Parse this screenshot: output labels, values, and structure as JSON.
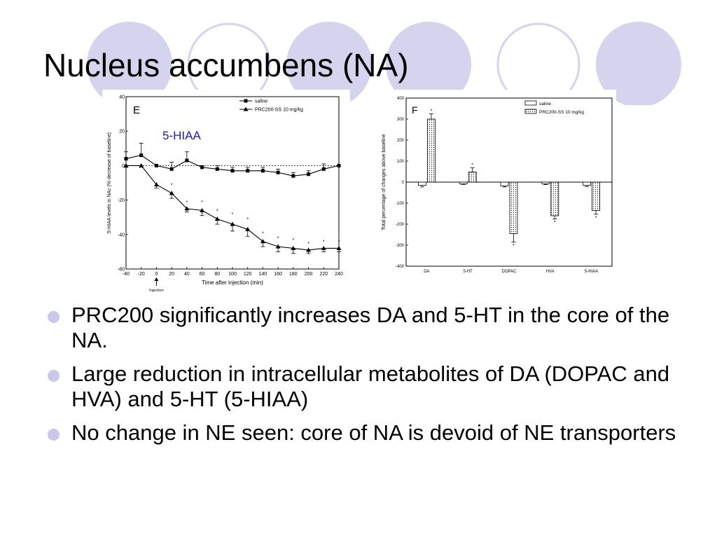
{
  "slide": {
    "title": "Nucleus accumbens (NA)",
    "bullets": [
      "PRC200 significantly increases DA and 5-HT in the core of the NA.",
      "Large reduction in intracellular metabolites of DA (DOPAC and HVA) and 5-HT (5-HIAA)",
      "No change in NE seen:  core of NA is devoid of NE transporters"
    ],
    "decoration": {
      "circle_fill": "#d4d4ee",
      "circle_outline": "#d4d4ee"
    }
  },
  "chart_data": [
    {
      "type": "line",
      "panel_label": "E",
      "annotation": "5-HIAA",
      "annotation_color": "#1a1acc",
      "xlabel": "Time after injection (min)",
      "ylabel": "5-HIAA levels in NAc (% decrease of baseline)",
      "injection_label": "Injection",
      "injection_x": 0,
      "xlim": [
        -40,
        240
      ],
      "ylim": [
        -60,
        40
      ],
      "xticks": [
        "-40",
        "-20",
        "0",
        "20",
        "40",
        "60",
        "80",
        "100",
        "120",
        "140",
        "160",
        "180",
        "200",
        "220",
        "240"
      ],
      "yticks": [
        "40",
        "20",
        "0",
        "-20",
        "-40",
        "-60"
      ],
      "legend_position": "top-right",
      "x": [
        -40,
        -20,
        0,
        20,
        40,
        60,
        80,
        100,
        120,
        140,
        160,
        180,
        200,
        220,
        240
      ],
      "series": [
        {
          "name": "saline",
          "marker": "square",
          "values": [
            4,
            6,
            0,
            -2,
            3,
            -1,
            -2,
            -3,
            -3,
            -3,
            -4,
            -6,
            -5,
            -2,
            0
          ],
          "errors": [
            4,
            7,
            0,
            4,
            5,
            1,
            2,
            2,
            2,
            2,
            2,
            2,
            2,
            3,
            0
          ]
        },
        {
          "name": "PRC200-SS 10 mg/kg",
          "marker": "triangle",
          "values": [
            0,
            0,
            -11,
            -16,
            -25,
            -26,
            -31,
            -34,
            -37,
            -44,
            -47,
            -48,
            -49,
            -48,
            -48
          ],
          "errors": [
            1,
            1,
            2,
            3,
            2,
            3,
            3,
            4,
            4,
            3,
            3,
            3,
            2,
            2,
            2
          ]
        }
      ],
      "significance_marker": "*",
      "significant_x": [
        20,
        40,
        60,
        80,
        100,
        120,
        140,
        160,
        180,
        200,
        220,
        240
      ]
    },
    {
      "type": "bar",
      "panel_label": "F",
      "ylabel": "Total percentage of changes above baseline",
      "categories": [
        "DA",
        "5-HT",
        "DOPAC",
        "HVA",
        "5-HIAA"
      ],
      "ylim": [
        -400,
        400
      ],
      "yticks": [
        "400",
        "300",
        "200",
        "100",
        "0",
        "-100",
        "-200",
        "-300",
        "-400"
      ],
      "legend_position": "top-right",
      "series": [
        {
          "name": "saline",
          "pattern": "open",
          "values": [
            -15,
            -8,
            -18,
            -8,
            -15
          ],
          "errors": [
            8,
            3,
            5,
            4,
            6
          ]
        },
        {
          "name": "PRC200-SS 10 mg/kg",
          "pattern": "dotted",
          "values": [
            300,
            48,
            -245,
            -160,
            -135
          ],
          "errors": [
            25,
            20,
            40,
            15,
            18
          ]
        }
      ],
      "significance_marker": "*",
      "significant_categories": [
        "DA",
        "5-HT",
        "DOPAC",
        "HVA",
        "5-HIAA"
      ]
    }
  ]
}
